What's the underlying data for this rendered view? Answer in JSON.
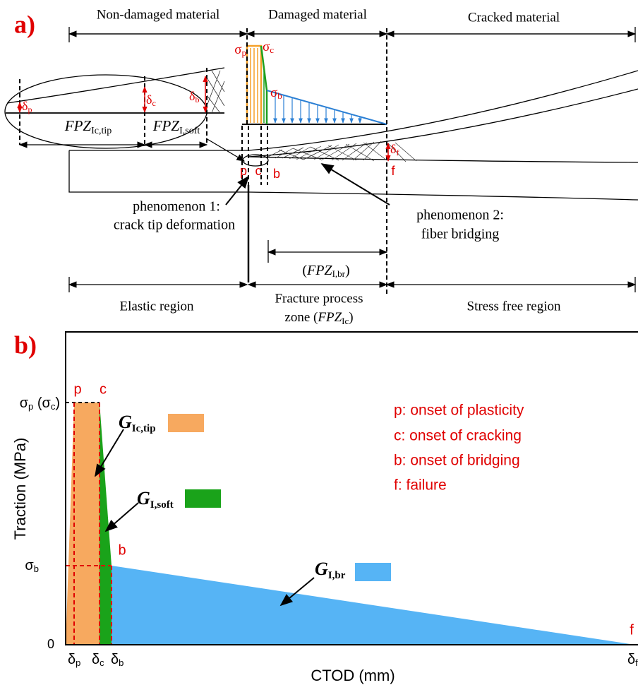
{
  "panel_a": {
    "label": "a)",
    "top_regions": [
      "Non-damaged material",
      "Damaged material",
      "Cracked material"
    ],
    "stresses": [
      [
        "σ",
        "p"
      ],
      [
        "σ",
        "c"
      ],
      [
        "σ",
        "b"
      ]
    ],
    "openings": [
      [
        "δ",
        "p"
      ],
      [
        "δ",
        "c"
      ],
      [
        "δ",
        "b"
      ],
      [
        "δ",
        "f"
      ]
    ],
    "fpz_tip": [
      "FPZ",
      "Ic,tip"
    ],
    "fpz_soft": [
      "FPZ",
      "I,soft"
    ],
    "points": [
      "p",
      "c",
      "b",
      "f"
    ],
    "phenomenon_1": [
      "phenomenon 1:",
      "crack tip deformation"
    ],
    "phenomenon_2": [
      "phenomenon 2:",
      "fiber bridging"
    ],
    "fpz_br": [
      "(",
      "FPZ",
      "I,br",
      ")"
    ],
    "bottom_regions": {
      "elastic": "Elastic region",
      "fpz": [
        "Fracture process",
        "zone (",
        "FPZ",
        "Ic",
        ")"
      ],
      "free": "Stress free region"
    }
  },
  "panel_b": {
    "label": "b)",
    "points": [
      "p",
      "c",
      "b",
      "f"
    ],
    "y_labels": {
      "peak": [
        "σ",
        "p",
        " (σ",
        "c",
        ")"
      ],
      "bridge": [
        "σ",
        "b"
      ],
      "zero": "0"
    },
    "x_labels": [
      [
        "δ",
        "p"
      ],
      [
        "δ",
        "c"
      ],
      [
        "δ",
        "b"
      ],
      [
        "δ",
        "f"
      ]
    ],
    "y_title": "Traction (MPa)",
    "x_title": "CTOD (mm)",
    "energies": [
      [
        "G",
        "Ic,tip"
      ],
      [
        "G",
        "I,soft"
      ],
      [
        "G",
        "I,br"
      ]
    ],
    "notes": [
      "p: onset of plasticity",
      "c:  onset of cracking",
      "b: onset of bridging",
      "f:  failure"
    ]
  }
}
